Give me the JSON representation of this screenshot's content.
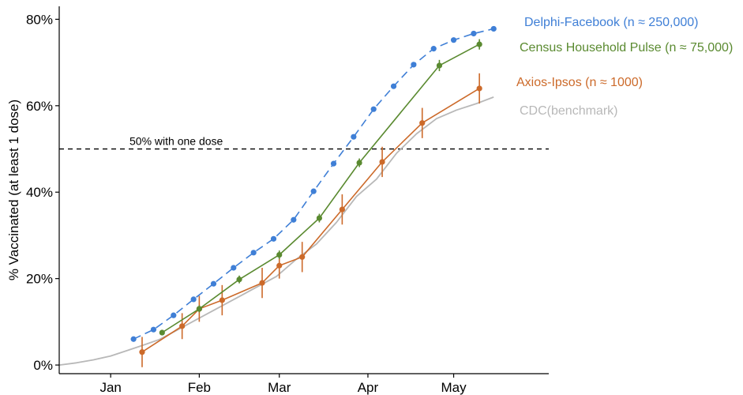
{
  "chart_data": {
    "type": "line",
    "xlabel": "",
    "ylabel": "% Vaccinated (at least 1 dose)",
    "x_axis": {
      "type": "date",
      "range": [
        "2020-12-14",
        "2021-05-26"
      ],
      "ticks": [
        {
          "date": "2021-01-01",
          "label": "Jan"
        },
        {
          "date": "2021-02-01",
          "label": "Feb"
        },
        {
          "date": "2021-03-01",
          "label": "Mar"
        },
        {
          "date": "2021-04-01",
          "label": "Apr"
        },
        {
          "date": "2021-05-01",
          "label": "May"
        }
      ]
    },
    "y_axis": {
      "range": [
        -2,
        83
      ],
      "ticks": [
        {
          "value": 0,
          "label": "0%"
        },
        {
          "value": 20,
          "label": "20%"
        },
        {
          "value": 40,
          "label": "40%"
        },
        {
          "value": 60,
          "label": "60%"
        },
        {
          "value": 80,
          "label": "80%"
        }
      ]
    },
    "grid": false,
    "legend": "direct labels at line ends",
    "reference_line": {
      "y": 50,
      "label": "50% with one dose",
      "style": "dashed",
      "color": "#000000"
    },
    "series": [
      {
        "name": "Delphi-Facebook (n ≈ 250,000)",
        "color": "#3f7fd6",
        "style": "dashed-with-points",
        "points": [
          {
            "x": "2021-01-09",
            "y": 6.0
          },
          {
            "x": "2021-01-16",
            "y": 8.2
          },
          {
            "x": "2021-01-23",
            "y": 11.5
          },
          {
            "x": "2021-01-30",
            "y": 15.2
          },
          {
            "x": "2021-02-06",
            "y": 18.8
          },
          {
            "x": "2021-02-13",
            "y": 22.5
          },
          {
            "x": "2021-02-20",
            "y": 26.0
          },
          {
            "x": "2021-02-27",
            "y": 29.2
          },
          {
            "x": "2021-03-06",
            "y": 33.6
          },
          {
            "x": "2021-03-13",
            "y": 40.2
          },
          {
            "x": "2021-03-20",
            "y": 46.6
          },
          {
            "x": "2021-03-27",
            "y": 52.8
          },
          {
            "x": "2021-04-03",
            "y": 59.2
          },
          {
            "x": "2021-04-10",
            "y": 64.5
          },
          {
            "x": "2021-04-17",
            "y": 69.5
          },
          {
            "x": "2021-04-24",
            "y": 73.2
          },
          {
            "x": "2021-05-01",
            "y": 75.2
          },
          {
            "x": "2021-05-08",
            "y": 76.7
          },
          {
            "x": "2021-05-15",
            "y": 77.8
          }
        ]
      },
      {
        "name": "Census Household Pulse (n ≈ 75,000)",
        "color": "#5a8a30",
        "style": "solid-with-points-errorbars",
        "points": [
          {
            "x": "2021-01-19",
            "y": 7.5,
            "err": 0.5
          },
          {
            "x": "2021-02-01",
            "y": 13.0,
            "err": 0.8
          },
          {
            "x": "2021-02-15",
            "y": 19.8,
            "err": 0.9
          },
          {
            "x": "2021-03-01",
            "y": 25.5,
            "err": 1.0
          },
          {
            "x": "2021-03-15",
            "y": 34.0,
            "err": 1.0
          },
          {
            "x": "2021-03-29",
            "y": 46.8,
            "err": 1.0
          },
          {
            "x": "2021-04-26",
            "y": 69.3,
            "err": 1.3
          },
          {
            "x": "2021-05-10",
            "y": 74.2,
            "err": 1.2
          }
        ]
      },
      {
        "name": "Axios-Ipsos (n ≈ 1000)",
        "color": "#cc6a2a",
        "style": "solid-with-points-errorbars",
        "points": [
          {
            "x": "2021-01-12",
            "y": 3.0,
            "err": 3.5
          },
          {
            "x": "2021-01-26",
            "y": 9.0,
            "err": 3.0
          },
          {
            "x": "2021-02-01",
            "y": 13.0,
            "err": 3.0
          },
          {
            "x": "2021-02-09",
            "y": 15.0,
            "err": 3.5
          },
          {
            "x": "2021-02-23",
            "y": 19.0,
            "err": 3.5
          },
          {
            "x": "2021-03-01",
            "y": 23.0,
            "err": 3.0
          },
          {
            "x": "2021-03-09",
            "y": 25.0,
            "err": 3.5
          },
          {
            "x": "2021-03-23",
            "y": 36.0,
            "err": 3.5
          },
          {
            "x": "2021-04-06",
            "y": 47.0,
            "err": 3.5
          },
          {
            "x": "2021-04-20",
            "y": 56.0,
            "err": 3.5
          },
          {
            "x": "2021-05-10",
            "y": 64.0,
            "err": 3.5
          }
        ]
      },
      {
        "name": "CDC(benchmark)",
        "color": "#b8b8b8",
        "style": "solid",
        "points": [
          {
            "x": "2020-12-14",
            "y": 0.0
          },
          {
            "x": "2020-12-20",
            "y": 0.5
          },
          {
            "x": "2020-12-26",
            "y": 1.2
          },
          {
            "x": "2021-01-01",
            "y": 2.1
          },
          {
            "x": "2021-01-06",
            "y": 3.2
          },
          {
            "x": "2021-01-12",
            "y": 4.5
          },
          {
            "x": "2021-01-18",
            "y": 5.9
          },
          {
            "x": "2021-01-24",
            "y": 8.0
          },
          {
            "x": "2021-01-31",
            "y": 10.5
          },
          {
            "x": "2021-02-07",
            "y": 13.0
          },
          {
            "x": "2021-02-14",
            "y": 15.5
          },
          {
            "x": "2021-02-21",
            "y": 18.0
          },
          {
            "x": "2021-02-28",
            "y": 20.5
          },
          {
            "x": "2021-03-07",
            "y": 24.5
          },
          {
            "x": "2021-03-14",
            "y": 28.0
          },
          {
            "x": "2021-03-21",
            "y": 33.0
          },
          {
            "x": "2021-03-28",
            "y": 39.0
          },
          {
            "x": "2021-04-04",
            "y": 43.0
          },
          {
            "x": "2021-04-11",
            "y": 49.0
          },
          {
            "x": "2021-04-18",
            "y": 53.5
          },
          {
            "x": "2021-04-25",
            "y": 57.0
          },
          {
            "x": "2021-05-02",
            "y": 59.0
          },
          {
            "x": "2021-05-09",
            "y": 60.5
          },
          {
            "x": "2021-05-15",
            "y": 62.0
          }
        ]
      }
    ]
  }
}
